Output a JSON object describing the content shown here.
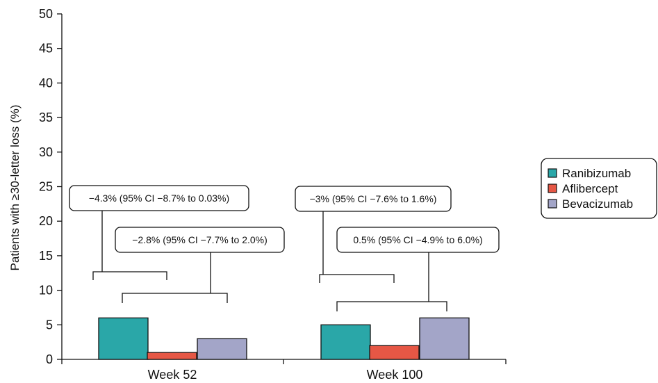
{
  "chart_data": {
    "type": "bar",
    "ylabel": "Patients with ≥30-letter loss (%)",
    "xlabel": "",
    "ylim": [
      0,
      50
    ],
    "yticks": [
      0,
      5,
      10,
      15,
      20,
      25,
      30,
      35,
      40,
      45,
      50
    ],
    "categories": [
      "Week 52",
      "Week 100"
    ],
    "series": [
      {
        "name": "Ranibizumab",
        "color": "#2aa7a8",
        "values": [
          6,
          5
        ]
      },
      {
        "name": "Aflibercept",
        "color": "#e65745",
        "values": [
          1,
          2
        ]
      },
      {
        "name": "Bevacizumab",
        "color": "#a3a5c8",
        "values": [
          3,
          6
        ]
      }
    ],
    "annotations": [
      {
        "category": "Week 52",
        "compare": [
          "Ranibizumab",
          "Aflibercept"
        ],
        "text": "−4.3% (95% CI −8.7% to 0.03%)"
      },
      {
        "category": "Week 52",
        "compare": [
          "Aflibercept",
          "Bevacizumab"
        ],
        "text": "−2.8% (95% CI −7.7% to 2.0%)"
      },
      {
        "category": "Week 100",
        "compare": [
          "Ranibizumab",
          "Aflibercept"
        ],
        "text": "−3% (95% CI −7.6% to 1.6%)"
      },
      {
        "category": "Week 100",
        "compare": [
          "Aflibercept",
          "Bevacizumab"
        ],
        "text": "0.5% (95% CI −4.9% to 6.0%)"
      }
    ],
    "legend_position": "right",
    "grid": false
  }
}
